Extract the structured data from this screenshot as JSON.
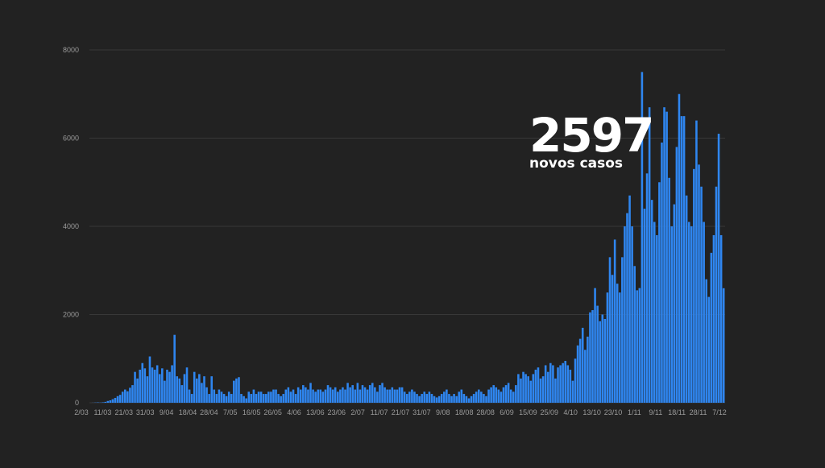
{
  "annotation": {
    "value": "2597",
    "label": "novos casos"
  },
  "colors": {
    "background": "#222222",
    "bar": "#2f86f0",
    "grid": "#383838",
    "tick": "#9a9a9a"
  },
  "chart_data": {
    "type": "bar",
    "title": "",
    "xlabel": "",
    "ylabel": "",
    "ylim": [
      0,
      8000
    ],
    "yticks": [
      0,
      2000,
      4000,
      6000,
      8000
    ],
    "grid": true,
    "legend": "none",
    "xtick_labels": [
      "2/03",
      "11/03",
      "21/03",
      "31/03",
      "9/04",
      "18/04",
      "28/04",
      "7/05",
      "16/05",
      "26/05",
      "4/06",
      "13/06",
      "23/06",
      "2/07",
      "11/07",
      "21/07",
      "31/07",
      "9/08",
      "18/08",
      "28/08",
      "6/09",
      "15/09",
      "25/09",
      "4/10",
      "13/10",
      "23/10",
      "1/11",
      "9/11",
      "18/11",
      "28/11",
      "7/12"
    ],
    "values": [
      0,
      2,
      5,
      8,
      5,
      10,
      20,
      40,
      55,
      80,
      110,
      150,
      180,
      250,
      300,
      260,
      340,
      400,
      700,
      550,
      750,
      900,
      780,
      600,
      1050,
      800,
      750,
      850,
      650,
      780,
      500,
      750,
      700,
      850,
      1540,
      600,
      550,
      400,
      650,
      800,
      300,
      200,
      700,
      550,
      650,
      450,
      600,
      350,
      200,
      600,
      300,
      200,
      300,
      250,
      200,
      150,
      250,
      200,
      500,
      550,
      580,
      200,
      150,
      100,
      250,
      200,
      300,
      200,
      250,
      250,
      200,
      200,
      250,
      250,
      300,
      300,
      200,
      150,
      200,
      300,
      350,
      250,
      300,
      200,
      350,
      300,
      400,
      350,
      300,
      450,
      300,
      250,
      300,
      300,
      250,
      300,
      400,
      350,
      300,
      350,
      250,
      300,
      350,
      300,
      450,
      350,
      400,
      300,
      450,
      300,
      400,
      350,
      300,
      400,
      450,
      350,
      250,
      400,
      450,
      350,
      300,
      300,
      350,
      300,
      300,
      350,
      350,
      250,
      200,
      250,
      300,
      250,
      200,
      150,
      200,
      250,
      200,
      250,
      200,
      150,
      120,
      150,
      200,
      250,
      300,
      200,
      150,
      200,
      150,
      250,
      300,
      200,
      150,
      100,
      150,
      200,
      250,
      300,
      250,
      200,
      150,
      300,
      350,
      400,
      350,
      300,
      250,
      350,
      400,
      450,
      300,
      250,
      400,
      650,
      550,
      700,
      650,
      600,
      500,
      650,
      750,
      800,
      550,
      600,
      850,
      700,
      900,
      850,
      550,
      800,
      850,
      900,
      950,
      850,
      750,
      500,
      1000,
      1300,
      1450,
      1700,
      1200,
      1500,
      2050,
      2100,
      2600,
      2200,
      1850,
      2000,
      1900,
      2500,
      3300,
      2900,
      3700,
      2700,
      2500,
      3300,
      4000,
      4300,
      4700,
      4000,
      3100,
      2550,
      2600,
      7500,
      4400,
      5200,
      6700,
      4600,
      4100,
      3800,
      5000,
      5900,
      6700,
      6600,
      5100,
      4000,
      4500,
      5800,
      7000,
      6500,
      6500,
      4700,
      4100,
      4000,
      5300,
      6400,
      5400,
      4900,
      4100,
      2800,
      2400,
      3400,
      3800,
      4900,
      6100,
      3800,
      2597
    ]
  }
}
